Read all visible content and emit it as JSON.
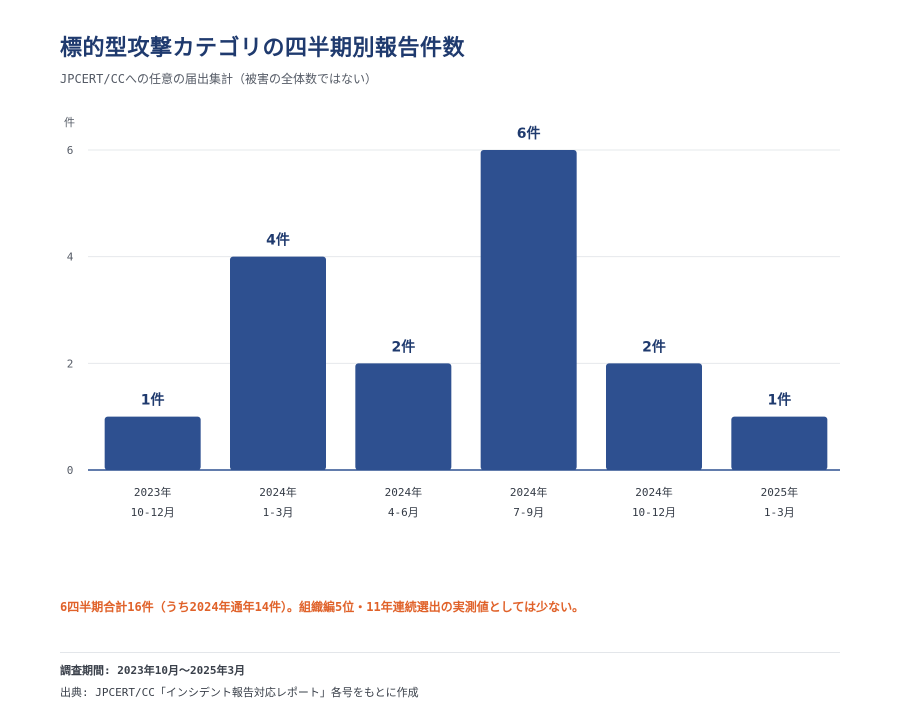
{
  "header": {
    "title": "標的型攻撃カテゴリの四半期別報告件数",
    "subtitle": "JPCERT/CCへの任意の届出集計（被害の全体数ではない）"
  },
  "chart_data": {
    "type": "bar",
    "categories": [
      [
        "2023年",
        "10-12月"
      ],
      [
        "2024年",
        "1-3月"
      ],
      [
        "2024年",
        "4-6月"
      ],
      [
        "2024年",
        "7-9月"
      ],
      [
        "2024年",
        "10-12月"
      ],
      [
        "2025年",
        "1-3月"
      ]
    ],
    "values": [
      1,
      4,
      2,
      6,
      2,
      1
    ],
    "data_labels": [
      "1件",
      "4件",
      "2件",
      "6件",
      "2件",
      "1件"
    ],
    "ylabel": "件",
    "yticks": [
      0,
      2,
      4,
      6
    ],
    "ylim": [
      0,
      6
    ],
    "grid": true,
    "bar_color": "#2e5090"
  },
  "footer": {
    "note": "6四半期合計16件（うち2024年通年14件）。組織編5位・11年連続選出の実測値としては少ない。",
    "period": "調査期間: 2023年10月〜2025年3月",
    "source": "出典: JPCERT/CC「インシデント報告対応レポート」各号をもとに作成"
  },
  "colors": {
    "accent": "#2e5090",
    "note": "#e0622a"
  }
}
